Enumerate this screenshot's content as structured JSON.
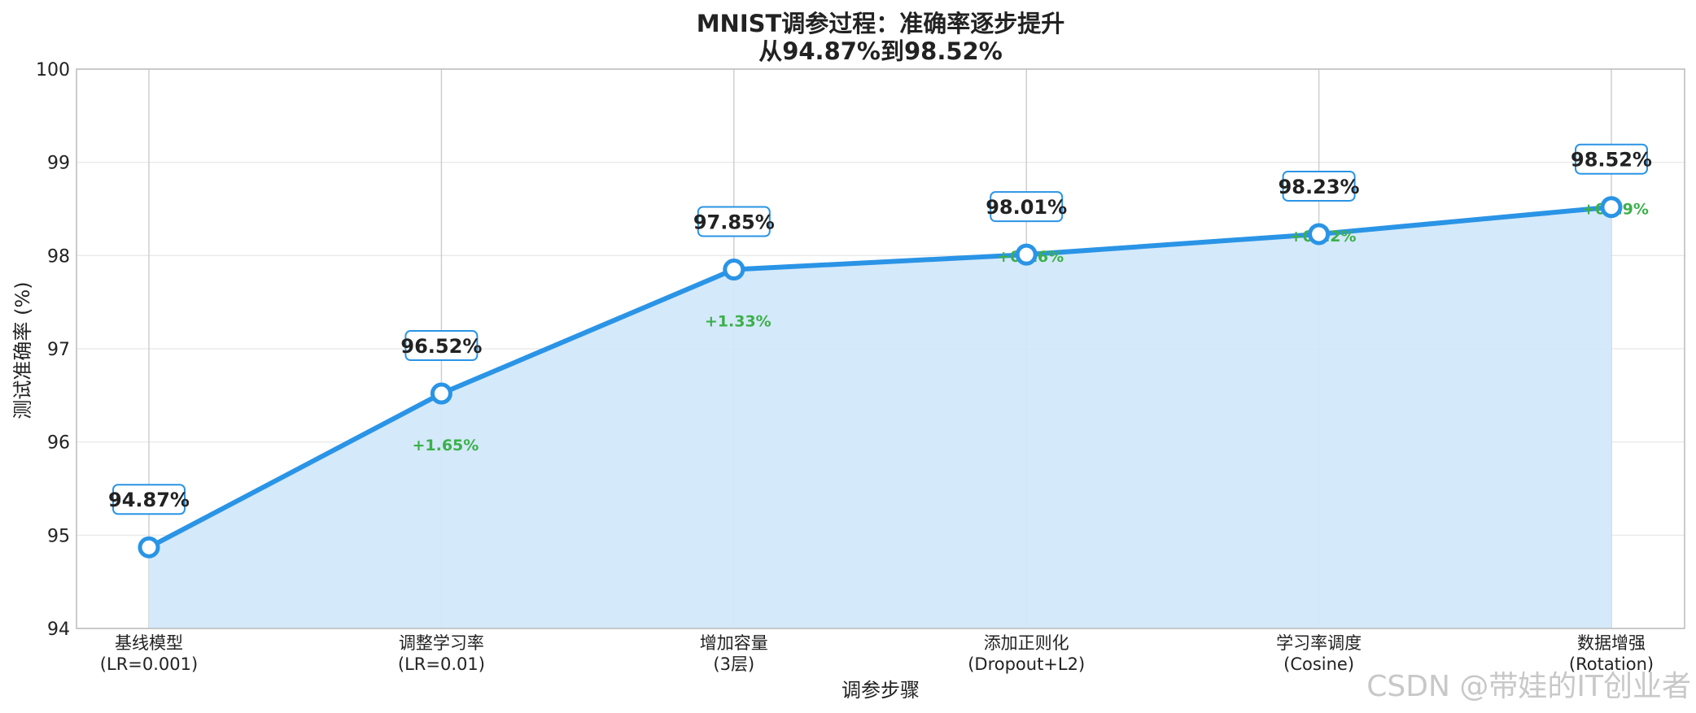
{
  "chart_data": {
    "type": "line",
    "title": "MNIST调参过程：准确率逐步提升",
    "subtitle": "从94.87%到98.52%",
    "xlabel": "调参步骤",
    "ylabel": "测试准确率 (%)",
    "ylim": [
      94,
      100
    ],
    "yticks": [
      "94",
      "95",
      "96",
      "97",
      "98",
      "99",
      "100"
    ],
    "grid": true,
    "fill_under": true,
    "categories": [
      [
        "基线模型",
        "(LR=0.001)"
      ],
      [
        "调整学习率",
        "(LR=0.01)"
      ],
      [
        "增加容量",
        "(3层)"
      ],
      [
        "添加正则化",
        "(Dropout+L2)"
      ],
      [
        "学习率调度",
        "(Cosine)"
      ],
      [
        "数据增强",
        "(Rotation)"
      ]
    ],
    "series": [
      {
        "values": [
          94.87,
          96.52,
          97.85,
          98.01,
          98.23,
          98.52
        ],
        "labels": [
          "94.87%",
          "96.52%",
          "97.85%",
          "98.01%",
          "98.23%",
          "98.52%"
        ],
        "deltas": [
          "",
          "+1.65%",
          "+1.33%",
          "+0.16%",
          "+0.22%",
          "+0.29%"
        ]
      }
    ],
    "colors": {
      "line": "#2a94e6",
      "fill": "#d2e8fa",
      "label_border": "#2a94e6",
      "delta": "#3cb04a",
      "grid": "#e6e6e6",
      "vgrid": "#cccccc"
    }
  },
  "watermark": "CSDN @带娃的IT创业者"
}
